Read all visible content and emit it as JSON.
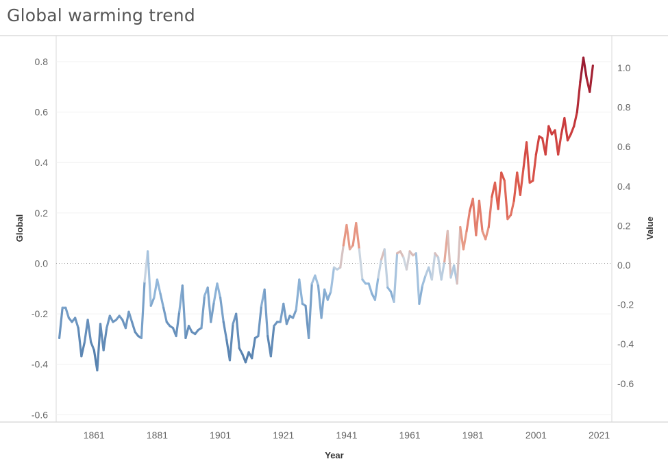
{
  "chart_data": {
    "type": "line",
    "title": "Global warming trend",
    "xlabel": "Year",
    "ylabel_left": "Global",
    "ylabel_right": "Value",
    "x_ticks": [
      "1861",
      "1881",
      "1901",
      "1921",
      "1941",
      "1961",
      "1981",
      "2001",
      "2021"
    ],
    "y_left_ticks": [
      "0.8",
      "0.6",
      "0.4",
      "0.2",
      "0.0",
      "-0.2",
      "-0.4",
      "-0.6"
    ],
    "y_right_ticks": [
      "1.0",
      "0.8",
      "0.6",
      "0.4",
      "0.2",
      "0.0",
      "-0.2",
      "-0.4",
      "-0.6"
    ],
    "xlim": [
      1849,
      2021
    ],
    "ylim_left": [
      -0.62,
      0.88
    ],
    "grid": true,
    "series": [
      {
        "name": "",
        "x": [
          1850,
          1851,
          1852,
          1853,
          1854,
          1855,
          1856,
          1857,
          1858,
          1859,
          1860,
          1861,
          1862,
          1863,
          1864,
          1865,
          1866,
          1867,
          1868,
          1869,
          1870,
          1871,
          1872,
          1873,
          1874,
          1875,
          1876,
          1877,
          1878,
          1879,
          1880,
          1881,
          1882,
          1883,
          1884,
          1885,
          1886,
          1887,
          1888,
          1889,
          1890,
          1891,
          1892,
          1893,
          1894,
          1895,
          1896,
          1897,
          1898,
          1899,
          1900,
          1901,
          1902,
          1903,
          1904,
          1905,
          1906,
          1907,
          1908,
          1909,
          1910,
          1911,
          1912,
          1913,
          1914,
          1915,
          1916,
          1917,
          1918,
          1919,
          1920,
          1921,
          1922,
          1923,
          1924,
          1925,
          1926,
          1927,
          1928,
          1929,
          1930,
          1931,
          1932,
          1933,
          1934,
          1935,
          1936,
          1937,
          1938,
          1939,
          1940,
          1941,
          1942,
          1943,
          1944,
          1945,
          1946,
          1947,
          1948,
          1949,
          1950,
          1951,
          1952,
          1953,
          1954,
          1955,
          1956,
          1957,
          1958,
          1959,
          1960,
          1961,
          1962,
          1963,
          1964,
          1965,
          1966,
          1967,
          1968,
          1969,
          1970,
          1971,
          1972,
          1973,
          1974,
          1975,
          1976,
          1977,
          1978,
          1979,
          1980,
          1981,
          1982,
          1983,
          1984,
          1985,
          1986,
          1987,
          1988,
          1989,
          1990,
          1991,
          1992,
          1993,
          1994,
          1995,
          1996,
          1997,
          1998,
          1999,
          2000,
          2001,
          2002,
          2003,
          2004,
          2005,
          2006,
          2007,
          2008,
          2009,
          2010,
          2011,
          2012,
          2013,
          2014,
          2015,
          2016,
          2017,
          2018,
          2019
        ],
        "values": [
          -0.37,
          -0.22,
          -0.22,
          -0.27,
          -0.29,
          -0.27,
          -0.32,
          -0.46,
          -0.39,
          -0.28,
          -0.39,
          -0.43,
          -0.53,
          -0.3,
          -0.43,
          -0.32,
          -0.26,
          -0.29,
          -0.28,
          -0.26,
          -0.28,
          -0.32,
          -0.24,
          -0.29,
          -0.34,
          -0.36,
          -0.37,
          -0.09,
          0.06,
          -0.21,
          -0.17,
          -0.08,
          -0.15,
          -0.22,
          -0.29,
          -0.31,
          -0.32,
          -0.36,
          -0.24,
          -0.11,
          -0.37,
          -0.31,
          -0.34,
          -0.35,
          -0.33,
          -0.32,
          -0.16,
          -0.12,
          -0.29,
          -0.19,
          -0.1,
          -0.17,
          -0.29,
          -0.38,
          -0.48,
          -0.3,
          -0.25,
          -0.42,
          -0.45,
          -0.49,
          -0.44,
          -0.47,
          -0.37,
          -0.36,
          -0.21,
          -0.13,
          -0.36,
          -0.46,
          -0.31,
          -0.29,
          -0.29,
          -0.2,
          -0.3,
          -0.26,
          -0.27,
          -0.23,
          -0.08,
          -0.2,
          -0.21,
          -0.37,
          -0.1,
          -0.06,
          -0.11,
          -0.27,
          -0.13,
          -0.18,
          -0.14,
          -0.02,
          -0.03,
          -0.02,
          0.09,
          0.19,
          0.07,
          0.09,
          0.2,
          0.07,
          -0.08,
          -0.1,
          -0.1,
          -0.15,
          -0.18,
          -0.07,
          0.02,
          0.07,
          -0.12,
          -0.14,
          -0.19,
          0.05,
          0.06,
          0.03,
          -0.03,
          0.06,
          0.04,
          0.05,
          -0.2,
          -0.11,
          -0.06,
          -0.02,
          -0.08,
          0.05,
          0.03,
          -0.08,
          0.01,
          0.16,
          -0.07,
          -0.01,
          -0.1,
          0.18,
          0.07,
          0.16,
          0.26,
          0.32,
          0.14,
          0.31,
          0.16,
          0.12,
          0.18,
          0.33,
          0.4,
          0.27,
          0.45,
          0.41,
          0.22,
          0.24,
          0.31,
          0.45,
          0.34,
          0.47,
          0.6,
          0.4,
          0.41,
          0.54,
          0.63,
          0.62,
          0.54,
          0.68,
          0.64,
          0.66,
          0.54,
          0.64,
          0.72,
          0.61,
          0.64,
          0.68,
          0.75,
          0.9,
          1.02,
          0.92,
          0.85,
          0.98
        ]
      }
    ]
  }
}
